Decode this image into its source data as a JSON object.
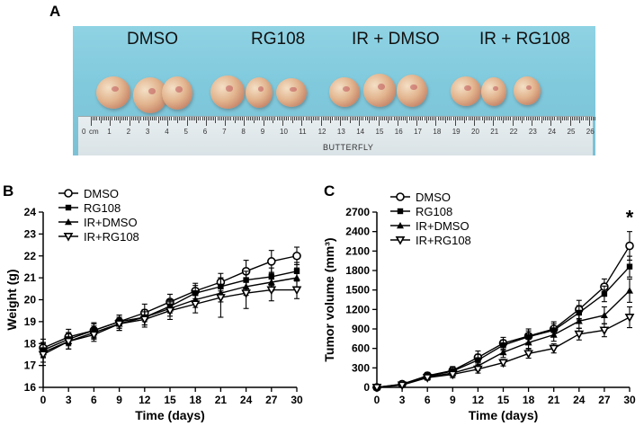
{
  "panel_labels": {
    "a": "A",
    "b": "B",
    "c": "C"
  },
  "photo": {
    "group_labels": [
      "DMSO",
      "RG108",
      "IR + DMSO",
      "IR + RG108"
    ],
    "ruler_numbers": [
      "0",
      "cm",
      "1",
      "2",
      "3",
      "4",
      "5",
      "6",
      "7",
      "8",
      "9",
      "10",
      "11",
      "12",
      "13",
      "14",
      "15",
      "16",
      "17",
      "18",
      "19",
      "20",
      "21",
      "22",
      "23",
      "24",
      "25",
      "26"
    ],
    "ruler_brand": "BUTTERFLY"
  },
  "chart_data": [
    {
      "type": "line",
      "panel": "B",
      "xlabel": "Time (days)",
      "ylabel": "Weight (g)",
      "x": [
        0,
        3,
        6,
        9,
        12,
        15,
        18,
        21,
        24,
        27,
        30
      ],
      "xlim": [
        0,
        30
      ],
      "ylim": [
        16,
        24
      ],
      "yticks": [
        16,
        17,
        18,
        19,
        20,
        21,
        22,
        23,
        24
      ],
      "xticks": [
        0,
        3,
        6,
        9,
        12,
        15,
        18,
        21,
        24,
        27,
        30
      ],
      "legend": "top-left",
      "series": [
        {
          "name": "DMSO",
          "marker": "circle-open",
          "values": [
            17.8,
            18.3,
            18.6,
            19.0,
            19.4,
            19.9,
            20.4,
            20.8,
            21.3,
            21.75,
            22.0
          ],
          "err": [
            0.4,
            0.35,
            0.35,
            0.3,
            0.4,
            0.35,
            0.35,
            0.4,
            0.5,
            0.5,
            0.4
          ]
        },
        {
          "name": "RG108",
          "marker": "square-filled",
          "values": [
            17.7,
            18.2,
            18.6,
            19.0,
            19.2,
            19.7,
            20.3,
            20.6,
            20.9,
            21.05,
            21.3
          ],
          "err": [
            0.35,
            0.3,
            0.3,
            0.3,
            0.35,
            0.3,
            0.35,
            0.4,
            0.4,
            0.4,
            0.4
          ]
        },
        {
          "name": "IR+DMSO",
          "marker": "triangle-up-filled",
          "values": [
            17.6,
            18.1,
            18.5,
            18.9,
            19.2,
            19.6,
            20.0,
            20.3,
            20.6,
            20.8,
            21.0
          ],
          "err": [
            0.45,
            0.35,
            0.3,
            0.3,
            0.35,
            0.35,
            0.35,
            0.4,
            0.4,
            0.4,
            0.45
          ]
        },
        {
          "name": "IR+RG108",
          "marker": "triangle-down-open",
          "values": [
            17.5,
            18.1,
            18.4,
            18.9,
            19.1,
            19.5,
            19.8,
            20.1,
            20.3,
            20.45,
            20.45
          ],
          "err": [
            0.5,
            0.35,
            0.3,
            0.3,
            0.35,
            0.4,
            0.4,
            0.9,
            0.7,
            0.5,
            0.4
          ]
        }
      ]
    },
    {
      "type": "line",
      "panel": "C",
      "xlabel": "Time (days)",
      "ylabel": "Tumor volume (mm³)",
      "x": [
        0,
        3,
        6,
        9,
        12,
        15,
        18,
        21,
        24,
        27,
        30
      ],
      "xlim": [
        0,
        30
      ],
      "ylim": [
        0,
        2700
      ],
      "yticks": [
        0,
        300,
        600,
        900,
        1200,
        1500,
        1800,
        2100,
        2400,
        2700
      ],
      "xticks": [
        0,
        3,
        6,
        9,
        12,
        15,
        18,
        21,
        24,
        27,
        30
      ],
      "legend": "top-left",
      "annotation": "*",
      "series": [
        {
          "name": "DMSO",
          "marker": "circle-open",
          "values": [
            0,
            50,
            180,
            260,
            460,
            680,
            790,
            900,
            1200,
            1550,
            2180
          ],
          "err": [
            0,
            30,
            50,
            60,
            100,
            90,
            110,
            110,
            140,
            120,
            220
          ]
        },
        {
          "name": "RG108",
          "marker": "square-filled",
          "values": [
            0,
            45,
            170,
            250,
            420,
            650,
            780,
            880,
            1150,
            1440,
            1860
          ],
          "err": [
            0,
            30,
            50,
            60,
            90,
            80,
            90,
            100,
            110,
            120,
            160
          ]
        },
        {
          "name": "IR+DMSO",
          "marker": "triangle-up-filled",
          "values": [
            0,
            40,
            160,
            220,
            330,
            540,
            690,
            810,
            1020,
            1110,
            1490
          ],
          "err": [
            0,
            25,
            40,
            50,
            70,
            80,
            90,
            100,
            110,
            130,
            180
          ]
        },
        {
          "name": "IR+RG108",
          "marker": "triangle-down-open",
          "values": [
            0,
            35,
            150,
            200,
            280,
            380,
            520,
            600,
            820,
            880,
            1080
          ],
          "err": [
            0,
            25,
            40,
            50,
            60,
            50,
            70,
            70,
            90,
            100,
            160
          ]
        }
      ]
    }
  ]
}
